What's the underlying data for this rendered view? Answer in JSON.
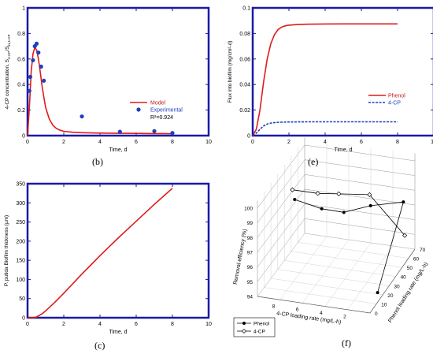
{
  "panels": {
    "b": {
      "label": "(b)",
      "chart_data": {
        "type": "line",
        "xlabel": "Time, d",
        "ylabel": "4-CP concentration, S",
        "ylabel_sub": "4-CP",
        "ylabel_mid": "/S",
        "ylabel_sub2": "in,4-CP",
        "xlim": [
          0,
          10
        ],
        "ylim": [
          0,
          1
        ],
        "xticks": [
          "0",
          "2",
          "4",
          "6",
          "8",
          "10"
        ],
        "yticks": [
          "0",
          "0.2",
          "0.4",
          "0.6",
          "0.8",
          "1"
        ],
        "series": [
          {
            "name": "Model",
            "kind": "line",
            "color": "#e01b1b",
            "x": [
              0,
              0.1,
              0.2,
              0.3,
              0.4,
              0.5,
              0.6,
              0.7,
              0.8,
              0.9,
              1.0,
              1.2,
              1.4,
              1.6,
              1.8,
              2.0,
              2.5,
              3.0,
              4.0,
              5.0,
              6.0,
              7.0,
              8.0
            ],
            "y": [
              0,
              0.22,
              0.5,
              0.64,
              0.69,
              0.67,
              0.6,
              0.5,
              0.39,
              0.3,
              0.22,
              0.13,
              0.08,
              0.055,
              0.042,
              0.034,
              0.026,
              0.023,
              0.02,
              0.018,
              0.017,
              0.016,
              0.015
            ]
          },
          {
            "name": "Experimental",
            "kind": "scatter",
            "color": "#1f3fbf",
            "x": [
              0.1,
              0.15,
              0.3,
              0.4,
              0.5,
              0.6,
              0.75,
              0.9,
              3.0,
              5.1,
              7.0,
              8.0
            ],
            "y": [
              0.35,
              0.46,
              0.59,
              0.7,
              0.72,
              0.65,
              0.54,
              0.43,
              0.15,
              0.03,
              0.035,
              0.02
            ]
          }
        ],
        "annotation": "R²=0.924"
      }
    },
    "e": {
      "label": "(e)",
      "chart_data": {
        "type": "line",
        "xlabel": "Time, d",
        "ylabel": "Flux into biofilm (mg/cm²-d)",
        "xlim": [
          0,
          10
        ],
        "ylim": [
          0,
          0.1
        ],
        "xticks": [
          "0",
          "2",
          "4",
          "6",
          "8",
          "10"
        ],
        "yticks": [
          "0",
          "0.02",
          "0.04",
          "0.06",
          "0.08",
          "0.1"
        ],
        "series": [
          {
            "name": "Phenol",
            "color": "#e01b1b",
            "dash": false,
            "x": [
              0,
              0.2,
              0.4,
              0.6,
              0.8,
              1.0,
              1.2,
              1.4,
              1.6,
              1.8,
              2.0,
              2.5,
              3.0,
              4.0,
              5.0,
              6.0,
              7.0,
              8.0
            ],
            "y": [
              0,
              0.005,
              0.02,
              0.042,
              0.06,
              0.072,
              0.079,
              0.083,
              0.085,
              0.086,
              0.0865,
              0.087,
              0.0872,
              0.0874,
              0.0875,
              0.0875,
              0.0875,
              0.0875
            ]
          },
          {
            "name": "4-CP",
            "color": "#1f3fbf",
            "dash": true,
            "x": [
              0,
              0.2,
              0.4,
              0.6,
              0.8,
              1.0,
              1.2,
              1.5,
              2.0,
              3.0,
              4.0,
              5.0,
              6.0,
              7.0,
              8.0
            ],
            "y": [
              0,
              0.002,
              0.005,
              0.0075,
              0.009,
              0.0098,
              0.0102,
              0.0105,
              0.0107,
              0.0108,
              0.0108,
              0.0108,
              0.0108,
              0.0108,
              0.0108
            ]
          }
        ]
      }
    },
    "c": {
      "label": "(c)",
      "chart_data": {
        "type": "line",
        "xlabel": "Time, d",
        "ylabel": "P. putida Biofilm thickness (µm)",
        "xlim": [
          0,
          10
        ],
        "ylim": [
          0,
          350
        ],
        "xticks": [
          "0",
          "2",
          "4",
          "6",
          "8",
          "10"
        ],
        "yticks": [
          "0",
          "50",
          "100",
          "150",
          "200",
          "250",
          "300",
          "350"
        ],
        "series": [
          {
            "name": "",
            "color": "#e01b1b",
            "x": [
              0,
              0.3,
              0.5,
              0.8,
              1.0,
              1.5,
              2.0,
              2.5,
              3.0,
              3.5,
              4.0,
              4.5,
              5.0,
              5.5,
              6.0,
              6.5,
              7.0,
              7.5,
              8.0
            ],
            "y": [
              0,
              0,
              2,
              10,
              18,
              40,
              64,
              89,
              114,
              138,
              162,
              185,
              208,
              230,
              252,
              274,
              296,
              317,
              338
            ]
          }
        ]
      }
    },
    "f": {
      "label": "(f)",
      "chart_data": {
        "type": "scatter",
        "zlabel": "Removal efficiency (%)",
        "xlabel": "4-CP loading rate (mg/L-h)",
        "ylabel": "Phenol loading rate (mg/L-h)",
        "zticks": [
          "94",
          "95",
          "96",
          "97",
          "98",
          "99",
          "100"
        ],
        "xticks": [
          "8",
          "6",
          "4",
          "2"
        ],
        "yticks": [
          "0",
          "10",
          "20",
          "30",
          "40",
          "50",
          "60",
          "70"
        ],
        "series": [
          {
            "name": "Phenol",
            "marker": "filled-circle",
            "color": "#000000",
            "points": [
              {
                "cp": 7.5,
                "ph": 20,
                "eff": 99.6
              },
              {
                "cp": 5.5,
                "ph": 25,
                "eff": 98.9
              },
              {
                "cp": 4.2,
                "ph": 35,
                "eff": 98.2
              },
              {
                "cp": 2.8,
                "ph": 50,
                "eff": 97.9
              },
              {
                "cp": 0.6,
                "ph": 60,
                "eff": 97.8
              },
              {
                "cp": 0.5,
                "ph": 20,
                "eff": 94.1
              }
            ]
          },
          {
            "name": "4-CP",
            "marker": "open-diamond",
            "color": "#000000",
            "points": [
              {
                "cp": 7.8,
                "ph": 22,
                "eff": 100.1
              },
              {
                "cp": 6.0,
                "ph": 28,
                "eff": 99.7
              },
              {
                "cp": 4.8,
                "ph": 38,
                "eff": 99.2
              },
              {
                "cp": 3.0,
                "ph": 52,
                "eff": 98.5
              },
              {
                "cp": 0.6,
                "ph": 62,
                "eff": 95.4
              }
            ]
          }
        ]
      }
    }
  }
}
